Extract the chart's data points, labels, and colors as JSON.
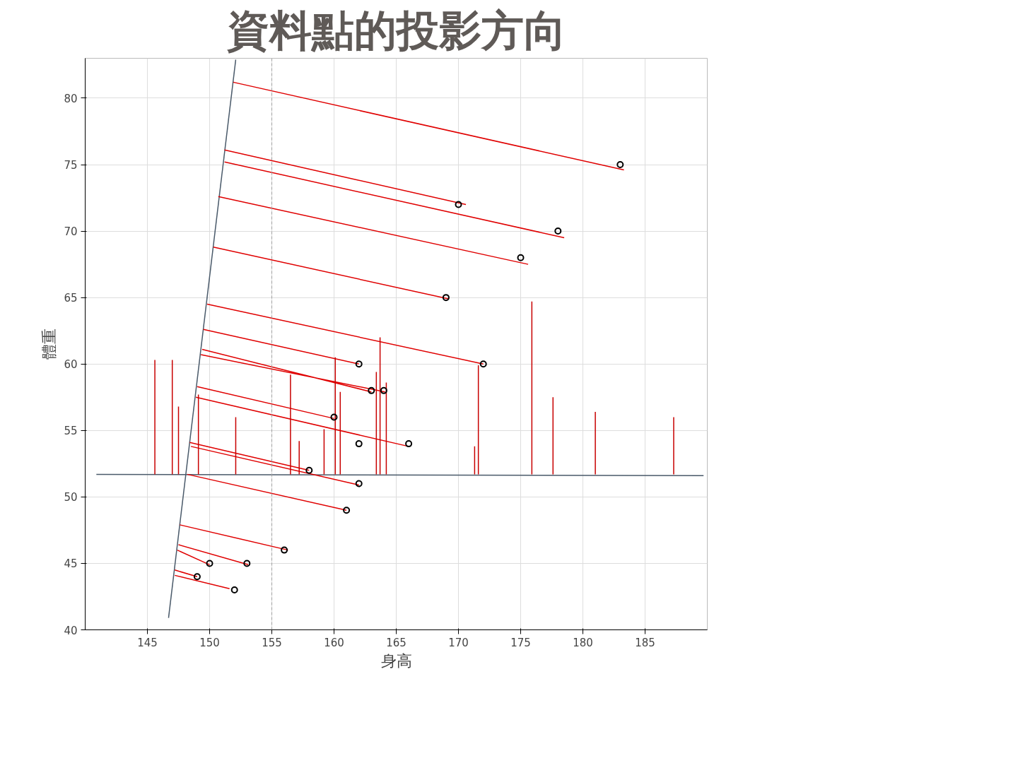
{
  "chart_data": {
    "type": "scatter",
    "title": "資料點的投影方向",
    "xlabel": "身高",
    "ylabel": "體重",
    "xlim": [
      140,
      190
    ],
    "ylim": [
      40,
      83
    ],
    "xticks": [
      145,
      150,
      155,
      160,
      165,
      170,
      175,
      180,
      185
    ],
    "yticks": [
      40,
      45,
      50,
      55,
      60,
      65,
      70,
      75,
      80
    ],
    "grid": true,
    "ref_lines": [
      {
        "axis": "x",
        "value": 155,
        "color": "#a0a0a0",
        "line_style": "dashed"
      }
    ],
    "series": [
      {
        "type": "line",
        "color": "#e00000",
        "x": [
          151.9,
          183.3,
          null,
          151.2,
          170.6,
          null,
          151.2,
          178.5,
          null,
          150.7,
          175.6,
          null,
          150.3,
          169.2,
          null,
          149.8,
          172.0,
          null,
          149.5,
          162.0,
          null,
          149.4,
          163.0,
          null,
          149.3,
          164.1,
          null,
          149.0,
          160.0,
          null,
          148.9,
          166.0,
          null,
          148.4,
          158.0,
          null,
          148.5,
          162.0,
          null,
          148.2,
          161.0,
          null,
          147.6,
          156.3,
          null,
          147.5,
          153.1,
          null,
          147.4,
          150.0,
          null,
          147.2,
          149.0,
          null,
          147.2,
          151.6
        ],
        "values": [
          81.2,
          74.6,
          null,
          76.1,
          72.0,
          null,
          75.2,
          69.5,
          null,
          72.6,
          67.5,
          null,
          68.8,
          64.9,
          null,
          64.5,
          60.0,
          null,
          62.6,
          60.0,
          null,
          61.1,
          57.9,
          null,
          60.7,
          57.9,
          null,
          58.3,
          55.9,
          null,
          57.5,
          53.8,
          null,
          54.1,
          52.0,
          null,
          53.8,
          50.9,
          null,
          51.7,
          49.0,
          null,
          47.9,
          46.0,
          null,
          46.4,
          44.9,
          null,
          46.0,
          44.9,
          null,
          44.5,
          44.0,
          null,
          44.1,
          43.1
        ]
      },
      {
        "type": "line",
        "color": "#c80000",
        "x": [
          145.6,
          145.6,
          null,
          147.0,
          147.0,
          null,
          147.5,
          147.5,
          null,
          149.1,
          149.1,
          null,
          152.1,
          152.1,
          null,
          156.5,
          156.5,
          null,
          157.2,
          157.2,
          null,
          159.2,
          159.2,
          null,
          160.1,
          160.1,
          null,
          160.5,
          160.5,
          null,
          163.4,
          163.4,
          null,
          163.7,
          163.7,
          null,
          164.2,
          164.2,
          null,
          171.3,
          171.3,
          null,
          171.6,
          171.6,
          null,
          175.9,
          175.9,
          null,
          177.6,
          177.6,
          null,
          181.0,
          181.0,
          null,
          187.3,
          187.3
        ],
        "values": [
          51.7,
          60.3,
          null,
          51.7,
          60.3,
          null,
          51.7,
          56.8,
          null,
          51.7,
          57.7,
          null,
          51.7,
          56.0,
          null,
          51.7,
          59.2,
          null,
          51.7,
          54.2,
          null,
          51.7,
          55.1,
          null,
          51.7,
          60.5,
          null,
          51.7,
          57.9,
          null,
          51.7,
          59.4,
          null,
          51.7,
          62.0,
          null,
          51.7,
          58.6,
          null,
          51.7,
          53.8,
          null,
          51.7,
          59.9,
          null,
          51.7,
          64.7,
          null,
          51.7,
          57.5,
          null,
          51.7,
          56.4,
          null,
          51.7,
          56.0
        ]
      },
      {
        "type": "line",
        "color": "#4a5a6a",
        "x": [
          146.7,
          152.1
        ],
        "values": [
          40.9,
          82.9
        ]
      },
      {
        "type": "line",
        "color": "#4a5a6a",
        "x": [
          140.9,
          189.7
        ],
        "values": [
          51.7,
          51.6
        ]
      },
      {
        "marker": "circle",
        "color": "#000000",
        "x": [
          183,
          170,
          178,
          175,
          169,
          162,
          172,
          163,
          164,
          160,
          162,
          166,
          158,
          162,
          161,
          156,
          150,
          153,
          149,
          152
        ],
        "values": [
          75,
          72,
          70,
          68,
          65,
          60,
          60,
          58,
          58,
          56,
          54,
          54,
          52,
          51,
          49,
          46,
          45,
          45,
          44,
          43
        ]
      }
    ]
  }
}
